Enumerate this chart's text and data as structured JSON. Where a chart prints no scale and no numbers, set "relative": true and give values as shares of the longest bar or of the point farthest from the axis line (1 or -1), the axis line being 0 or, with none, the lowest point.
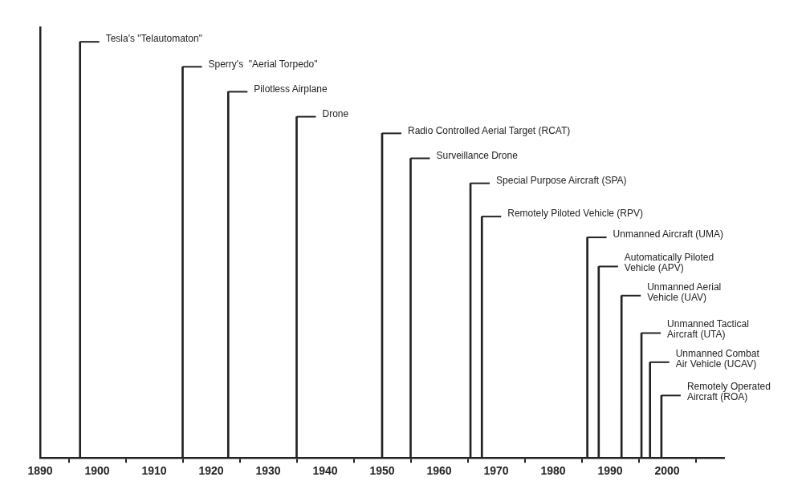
{
  "chart_data": {
    "type": "bar",
    "relative": true,
    "grid": false,
    "legend": false,
    "tick_labels": "x",
    "xlim": [
      1890,
      2010
    ],
    "xticks": [
      1890,
      1900,
      1910,
      1920,
      1930,
      1940,
      1950,
      1960,
      1970,
      1980,
      1990,
      2000
    ],
    "series": [
      {
        "color": "#222222",
        "x": [
          1897,
          1915,
          1923,
          1935,
          1950,
          1955,
          1965.5,
          1967.5,
          1986,
          1988,
          1992,
          1995.5,
          1997,
          1999
        ],
        "values": [
          1,
          0.94,
          0.88,
          0.82,
          0.78,
          0.72,
          0.66,
          0.58,
          0.53,
          0.46,
          0.39,
          0.3,
          0.23,
          0.15
        ]
      }
    ],
    "annotations": [
      {
        "text": "Tesla's \"Telautomaton\"",
        "x": 1897,
        "y": 1
      },
      {
        "text": "Sperry's  \"Aerial Torpedo\"",
        "x": 1915,
        "y": 0.94
      },
      {
        "text": "Pilotless Airplane",
        "x": 1923,
        "y": 0.88
      },
      {
        "text": "Drone",
        "x": 1935,
        "y": 0.82
      },
      {
        "text": "Radio Controlled Aerial Target (RCAT)",
        "x": 1950,
        "y": 0.78
      },
      {
        "text": "Surveillance Drone",
        "x": 1955,
        "y": 0.72
      },
      {
        "text": "Special Purpose Aircraft (SPA)",
        "x": 1965.5,
        "y": 0.66
      },
      {
        "text": "Remotely Piloted Vehicle (RPV)",
        "x": 1967.5,
        "y": 0.58
      },
      {
        "text": "Unmanned Aircraft (UMA)",
        "x": 1986,
        "y": 0.53
      },
      {
        "text": "Automatically Piloted\nVehicle (APV)",
        "x": 1988,
        "y": 0.46
      },
      {
        "text": "Unmanned Aerial\nVehicle (UAV)",
        "x": 1992,
        "y": 0.39
      },
      {
        "text": "Unmanned Tactical\nAircraft (UTA)",
        "x": 1995.5,
        "y": 0.3
      },
      {
        "text": "Unmanned Combat\nAir Vehicle (UCAV)",
        "x": 1997,
        "y": 0.23
      },
      {
        "text": "Remotely Operated\nAircraft (ROA)",
        "x": 1999,
        "y": 0.15
      }
    ]
  }
}
